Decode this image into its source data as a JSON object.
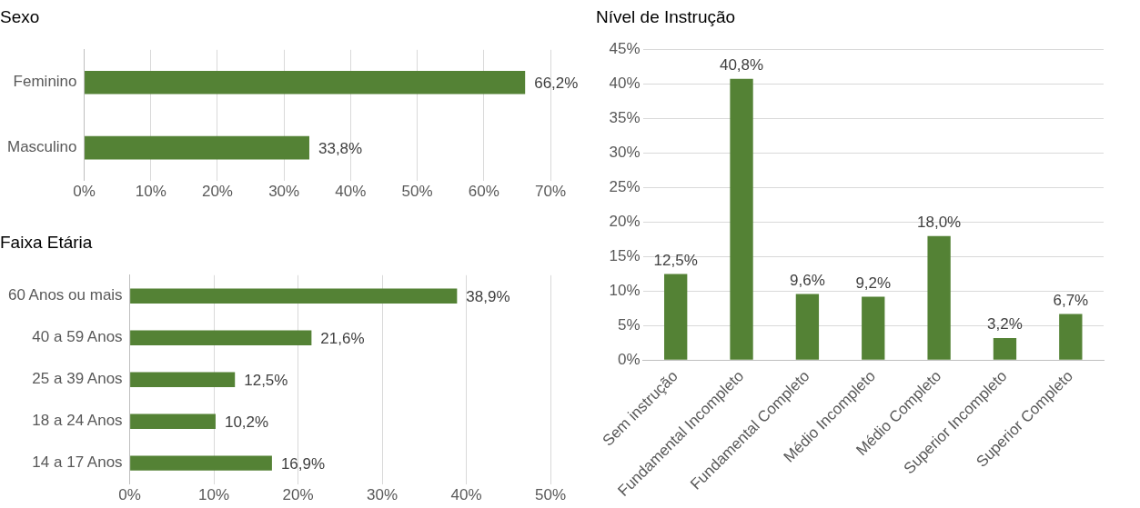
{
  "chart_data": [
    {
      "type": "bar",
      "title": "Sexo",
      "orientation": "horizontal",
      "categories": [
        "Feminino",
        "Masculino"
      ],
      "values": [
        66.2,
        33.8
      ],
      "value_labels": [
        "66,2%",
        "33,8%"
      ],
      "color": "#548235",
      "xlim": [
        0,
        70
      ],
      "xticks": [
        {
          "value": 0,
          "label": "0%"
        },
        {
          "value": 10,
          "label": "10%"
        },
        {
          "value": 20,
          "label": "20%"
        },
        {
          "value": 30,
          "label": "30%"
        },
        {
          "value": 40,
          "label": "40%"
        },
        {
          "value": 50,
          "label": "50%"
        },
        {
          "value": 60,
          "label": "60%"
        },
        {
          "value": 70,
          "label": "70%"
        }
      ],
      "grid": "x",
      "legend": false
    },
    {
      "type": "bar",
      "title": "Faixa Etária",
      "orientation": "horizontal",
      "categories": [
        "60 Anos ou mais",
        "40 a 59 Anos",
        "25 a 39 Anos",
        "18 a 24 Anos",
        "14 a 17 Anos"
      ],
      "values": [
        38.9,
        21.6,
        12.5,
        10.2,
        16.9
      ],
      "value_labels": [
        "38,9%",
        "21,6%",
        "12,5%",
        "10,2%",
        "16,9%"
      ],
      "color": "#548235",
      "xlim": [
        0,
        50
      ],
      "xticks": [
        {
          "value": 0,
          "label": "0%"
        },
        {
          "value": 10,
          "label": "10%"
        },
        {
          "value": 20,
          "label": "20%"
        },
        {
          "value": 30,
          "label": "30%"
        },
        {
          "value": 40,
          "label": "40%"
        },
        {
          "value": 50,
          "label": "50%"
        }
      ],
      "grid": "x",
      "legend": false
    },
    {
      "type": "bar",
      "title": "Nível de Instrução",
      "categories": [
        "Sem instrução",
        "Fundamental Incompleto",
        "Fundamental Completo",
        "Médio Incompleto",
        "Médio Completo",
        "Superior Incompleto",
        "Superior Completo"
      ],
      "values": [
        12.5,
        40.8,
        9.6,
        9.2,
        18.0,
        3.2,
        6.7
      ],
      "value_labels": [
        "12,5%",
        "40,8%",
        "9,6%",
        "9,2%",
        "18,0%",
        "3,2%",
        "6,7%"
      ],
      "color": "#548235",
      "ylim": [
        0,
        45
      ],
      "yticks": [
        {
          "value": 0,
          "label": "0%"
        },
        {
          "value": 5,
          "label": "5%"
        },
        {
          "value": 10,
          "label": "10%"
        },
        {
          "value": 15,
          "label": "15%"
        },
        {
          "value": 20,
          "label": "20%"
        },
        {
          "value": 25,
          "label": "25%"
        },
        {
          "value": 30,
          "label": "30%"
        },
        {
          "value": 35,
          "label": "35%"
        },
        {
          "value": 40,
          "label": "40%"
        },
        {
          "value": 45,
          "label": "45%"
        }
      ],
      "grid": "y",
      "legend": false
    }
  ]
}
